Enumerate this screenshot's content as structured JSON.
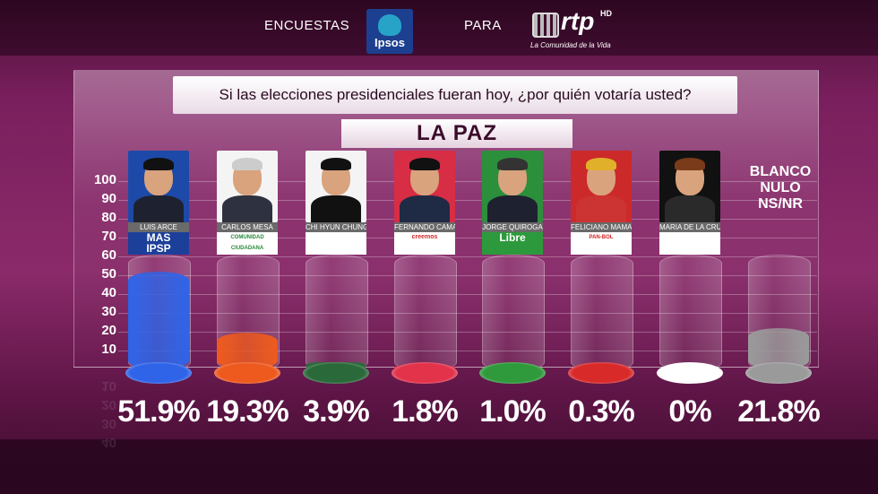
{
  "header": {
    "left_text": "ENCUESTAS",
    "ipsos_text": "Ipsos",
    "mid_text": "PARA",
    "rtp_text": "rtp",
    "rtp_hd": "HD",
    "rtp_tagline": "La Comunidad de la Vida"
  },
  "question": "Si las elecciones presidenciales fueran hoy, ¿por quién votaría usted?",
  "region": "LA PAZ",
  "colors": {
    "arce": "#2f64e8",
    "mesa": "#ee5a1e",
    "chi": "#2a6a3a",
    "camacho": "#e2334a",
    "quiroga": "#2f9a3c",
    "mamani": "#d92a2a",
    "bayá": "#ffffff",
    "blanco": "#9a9a9a"
  },
  "chart_data": {
    "type": "bar",
    "title": "Si las elecciones presidenciales fueran hoy, ¿por quién votaría usted?",
    "subtitle": "LA PAZ",
    "ylim": [
      0,
      100
    ],
    "yticks": [
      "100",
      "90",
      "80",
      "70",
      "60",
      "50",
      "40",
      "30",
      "20",
      "10"
    ],
    "grid": true,
    "categories": [
      "LUIS ARCE",
      "CARLOS MESA",
      "CHI HYUN CHUNG",
      "FERNANDO CAMACHO",
      "JORGE QUIROGA",
      "FELICIANO MAMANI",
      "MARIA DE LA CRUZ BAYA",
      "BLANCO NULO NS/NR"
    ],
    "values": [
      51.9,
      19.3,
      3.9,
      1.8,
      1.0,
      0.3,
      0,
      21.8
    ],
    "labels": [
      "51.9%",
      "19.3%",
      "3.9%",
      "1.8%",
      "1.0%",
      "0.3%",
      "0%",
      "21.8%"
    ]
  },
  "candidates": [
    {
      "name": "LUIS ARCE",
      "party": "MAS IPSP",
      "party_line1": "MAS",
      "party_line2": "IPSP"
    },
    {
      "name": "CARLOS MESA",
      "party_line1": "COMUNIDAD",
      "party_line2": "CIUDADANA"
    },
    {
      "name": "CHI HYUN CHUNG",
      "party_line1": "",
      "party_line2": ""
    },
    {
      "name": "FERNANDO CAMACHO",
      "party_line1": "creemos",
      "party_line2": ""
    },
    {
      "name": "JORGE QUIROGA",
      "party_line1": "Libre",
      "party_line2": ""
    },
    {
      "name": "FELICIANO MAMANI",
      "party_line1": "PAN-BOL",
      "party_line2": ""
    },
    {
      "name": "MARIA DE LA CRUZ BAYA",
      "party_line1": "",
      "party_line2": ""
    }
  ],
  "blank": {
    "line1": "BLANCO",
    "line2": "NULO",
    "line3": "NS/NR"
  },
  "reflected_ticks": [
    "10",
    "20",
    "30",
    "40"
  ]
}
